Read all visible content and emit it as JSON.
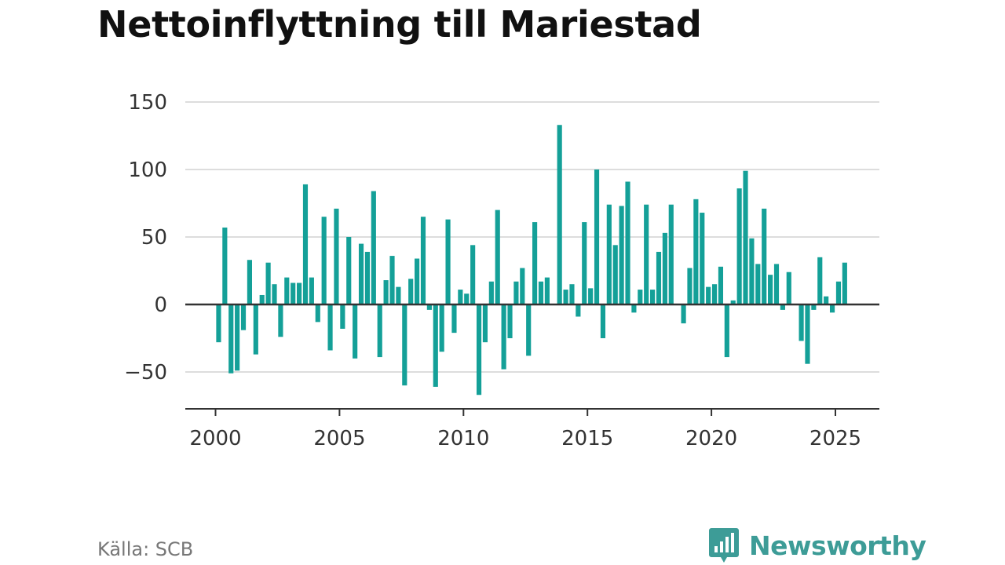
{
  "title": "Nettoinflyttning till Mariestad",
  "source": "Källa: SCB",
  "brand": {
    "name": "Newsworthy",
    "icon": "newsworthy-logo-icon"
  },
  "colors": {
    "bar": "#14a098",
    "grid": "#dddddd",
    "zero": "#333333",
    "axis": "#333333",
    "brand": "#3d9c97"
  },
  "chart_data": {
    "type": "bar",
    "title": "Nettoinflyttning till Mariestad",
    "xlabel": "",
    "ylabel": "",
    "ylim": [
      -75,
      150
    ],
    "xlim": [
      1999.6,
      2026.3
    ],
    "yticks": [
      150,
      100,
      50,
      0,
      -50
    ],
    "ytick_labels": [
      "150",
      "100",
      "50",
      "0",
      "−50"
    ],
    "xticks": [
      2000,
      2005,
      2010,
      2015,
      2020,
      2025
    ],
    "xtick_labels": [
      "2000",
      "2005",
      "2010",
      "2015",
      "2020",
      "2025"
    ],
    "grid": true,
    "x": [
      2000.125,
      2000.375,
      2000.625,
      2000.875,
      2001.125,
      2001.375,
      2001.625,
      2001.875,
      2002.125,
      2002.375,
      2002.625,
      2002.875,
      2003.125,
      2003.375,
      2003.625,
      2003.875,
      2004.125,
      2004.375,
      2004.625,
      2004.875,
      2005.125,
      2005.375,
      2005.625,
      2005.875,
      2006.125,
      2006.375,
      2006.625,
      2006.875,
      2007.125,
      2007.375,
      2007.625,
      2007.875,
      2008.125,
      2008.375,
      2008.625,
      2008.875,
      2009.125,
      2009.375,
      2009.625,
      2009.875,
      2010.125,
      2010.375,
      2010.625,
      2010.875,
      2011.125,
      2011.375,
      2011.625,
      2011.875,
      2012.125,
      2012.375,
      2012.625,
      2012.875,
      2013.125,
      2013.375,
      2013.625,
      2013.875,
      2014.125,
      2014.375,
      2014.625,
      2014.875,
      2015.125,
      2015.375,
      2015.625,
      2015.875,
      2016.125,
      2016.375,
      2016.625,
      2016.875,
      2017.125,
      2017.375,
      2017.625,
      2017.875,
      2018.125,
      2018.375,
      2018.625,
      2018.875,
      2019.125,
      2019.375,
      2019.625,
      2019.875,
      2020.125,
      2020.375,
      2020.625,
      2020.875,
      2021.125,
      2021.375,
      2021.625,
      2021.875,
      2022.125,
      2022.375,
      2022.625,
      2022.875,
      2023.125,
      2023.375,
      2023.625,
      2023.875,
      2024.125,
      2024.375,
      2024.625,
      2024.875,
      2025.125,
      2025.375
    ],
    "values": [
      -28,
      57,
      -51,
      -49,
      -19,
      33,
      -37,
      7,
      31,
      15,
      -24,
      20,
      16,
      16,
      89,
      20,
      -13,
      65,
      -34,
      71,
      -18,
      50,
      -40,
      45,
      39,
      84,
      -39,
      18,
      36,
      13,
      -60,
      19,
      34,
      65,
      -4,
      -61,
      -35,
      63,
      -21,
      11,
      8,
      44,
      -67,
      -28,
      17,
      70,
      -48,
      -25,
      17,
      27,
      -38,
      61,
      17,
      20,
      0,
      133,
      11,
      15,
      -9,
      61,
      12,
      100,
      -25,
      74,
      44,
      73,
      91,
      -6,
      11,
      74,
      11,
      39,
      53,
      74,
      0,
      -14,
      27,
      78,
      68,
      13,
      15,
      28,
      -39,
      3,
      86,
      99,
      49,
      30,
      71,
      22,
      30,
      -4,
      24,
      0,
      -27,
      -44,
      -4,
      35,
      6,
      -6,
      17,
      31
    ]
  }
}
